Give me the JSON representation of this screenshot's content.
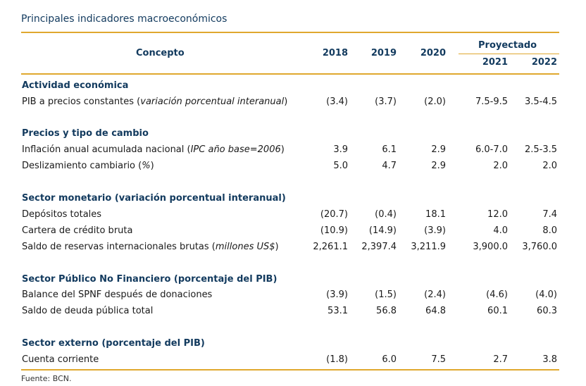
{
  "title": "Principales indicadores macroeconómicos",
  "header": {
    "concepto": "Concepto",
    "years": [
      "2018",
      "2019",
      "2020"
    ],
    "projected_label": "Proyectado",
    "projected_years": [
      "2021",
      "2022"
    ]
  },
  "sections": [
    {
      "title": "Actividad económica",
      "rows": [
        {
          "label_pre": "PIB a precios constantes (",
          "label_italic": "variación porcentual interanual",
          "label_post": ")",
          "values": [
            "(3.4)",
            "(3.7)",
            "(2.0)",
            "7.5-9.5",
            "3.5-4.5"
          ]
        }
      ]
    },
    {
      "title": "Precios y tipo de cambio",
      "rows": [
        {
          "label_pre": "Inflación anual acumulada nacional (",
          "label_italic": "IPC año base=2006",
          "label_post": ")",
          "values": [
            "3.9",
            "6.1",
            "2.9",
            "6.0-7.0",
            "2.5-3.5"
          ]
        },
        {
          "label_pre": "Deslizamiento cambiario (",
          "label_italic": "%",
          "label_post": ")",
          "values": [
            "5.0",
            "4.7",
            "2.9",
            "2.0",
            "2.0"
          ]
        }
      ]
    },
    {
      "title": "Sector monetario (variación porcentual interanual)",
      "rows": [
        {
          "label_pre": "Depósitos totales",
          "label_italic": "",
          "label_post": "",
          "values": [
            "(20.7)",
            "(0.4)",
            "18.1",
            "12.0",
            "7.4"
          ]
        },
        {
          "label_pre": "Cartera de crédito bruta",
          "label_italic": "",
          "label_post": "",
          "values": [
            "(10.9)",
            "(14.9)",
            "(3.9)",
            "4.0",
            "8.0"
          ]
        },
        {
          "label_pre": "Saldo de reservas internacionales brutas (",
          "label_italic": "millones US$",
          "label_post": ")",
          "values": [
            "2,261.1",
            "2,397.4",
            "3,211.9",
            "3,900.0",
            "3,760.0"
          ]
        }
      ]
    },
    {
      "title": "Sector Público No Financiero (porcentaje del PIB)",
      "rows": [
        {
          "label_pre": "Balance del SPNF después de donaciones",
          "label_italic": "",
          "label_post": "",
          "values": [
            "(3.9)",
            "(1.5)",
            "(2.4)",
            "(4.6)",
            "(4.0)"
          ]
        },
        {
          "label_pre": "Saldo de deuda pública total",
          "label_italic": "",
          "label_post": "",
          "values": [
            "53.1",
            "56.8",
            "64.8",
            "60.1",
            "60.3"
          ]
        }
      ]
    },
    {
      "title": "Sector externo (porcentaje del PIB)",
      "rows": [
        {
          "label_pre": "Cuenta corriente",
          "label_italic": "",
          "label_post": "",
          "values": [
            "(1.8)",
            "6.0",
            "7.5",
            "2.7",
            "3.8"
          ]
        }
      ]
    }
  ],
  "source": "Fuente: BCN."
}
